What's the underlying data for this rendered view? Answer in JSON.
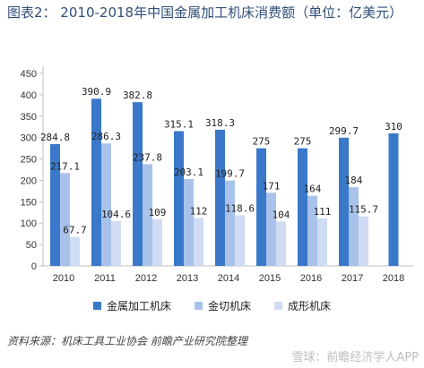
{
  "title": "图表2：  2010-2018年中国金属加工机床消费额（单位：亿美元）",
  "source": "资料来源：机床工具工业协会  前瞻产业研究院整理",
  "watermark": "雪球：前瞻经济学人APP",
  "colors": {
    "series": [
      "#3a78c9",
      "#a9c2ea",
      "#cfdcf3"
    ],
    "axis": "#bfbfbf",
    "label": "#222222"
  },
  "chart_data": {
    "type": "bar",
    "categories": [
      "2010",
      "2011",
      "2012",
      "2013",
      "2014",
      "2015",
      "2016",
      "2017",
      "2018"
    ],
    "series": [
      {
        "name": "金属加工机床",
        "values": [
          284.8,
          390.9,
          382.8,
          315.1,
          318.3,
          275,
          275,
          299.7,
          310
        ]
      },
      {
        "name": "金切机床",
        "values": [
          217.1,
          286.3,
          237.8,
          203.1,
          199.7,
          171,
          164,
          184,
          null
        ]
      },
      {
        "name": "成形机床",
        "values": [
          67.7,
          104.6,
          109,
          112,
          118.6,
          104,
          111,
          115.7,
          null
        ]
      }
    ],
    "data_labels": [
      [
        "284.8",
        "390.9",
        "382.8",
        "315.1",
        "318.3",
        "275",
        "275",
        "299.7",
        "310"
      ],
      [
        "217.1",
        "286.3",
        "237.8",
        "203.1",
        "199.7",
        "171",
        "164",
        "184",
        ""
      ],
      [
        "67.7",
        "104.6",
        "109",
        "112",
        "118.6",
        "104",
        "111",
        "115.7",
        ""
      ]
    ],
    "yticks": [
      "0",
      "50",
      "100",
      "150",
      "200",
      "250",
      "300",
      "350",
      "400",
      "450"
    ],
    "ylim": [
      0,
      450
    ],
    "grid": false,
    "legend": "bottom"
  }
}
